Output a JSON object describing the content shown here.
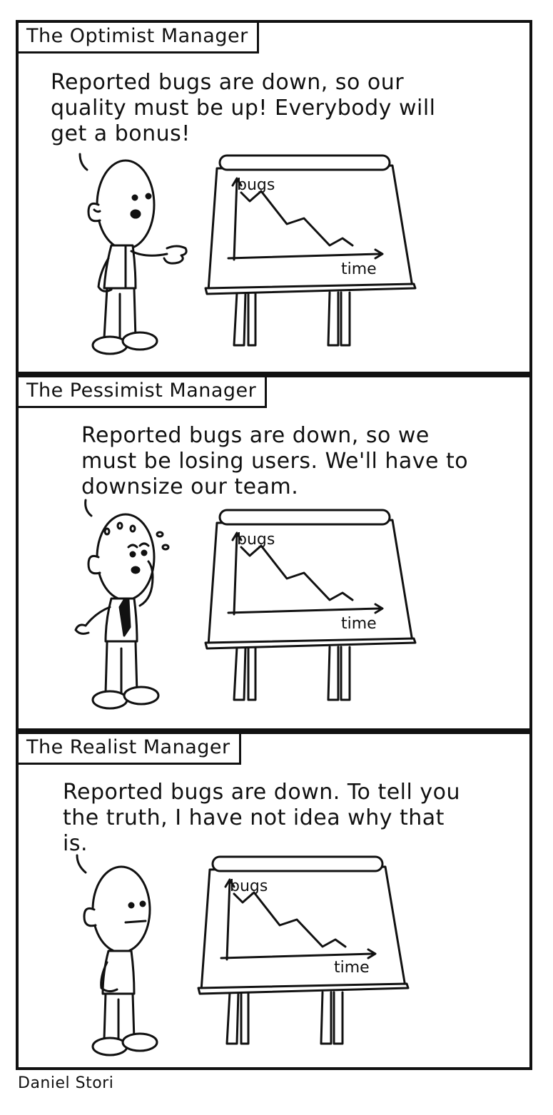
{
  "panels": [
    {
      "title": "The Optimist Manager",
      "speech": "Reported bugs are down, so our quality must be up! Everybody will get a bonus!",
      "chart": {
        "ylabel": "bugs",
        "xlabel": "time"
      }
    },
    {
      "title": "The Pessimist Manager",
      "speech": "Reported bugs are down, so we must be losing users. We'll have to downsize our team.",
      "chart": {
        "ylabel": "bugs",
        "xlabel": "time"
      }
    },
    {
      "title": "The Realist Manager",
      "speech": "Reported bugs are down. To tell you the truth, I have not idea why that is.",
      "chart": {
        "ylabel": "bugs",
        "xlabel": "time"
      }
    }
  ],
  "signature": "Daniel Stori"
}
